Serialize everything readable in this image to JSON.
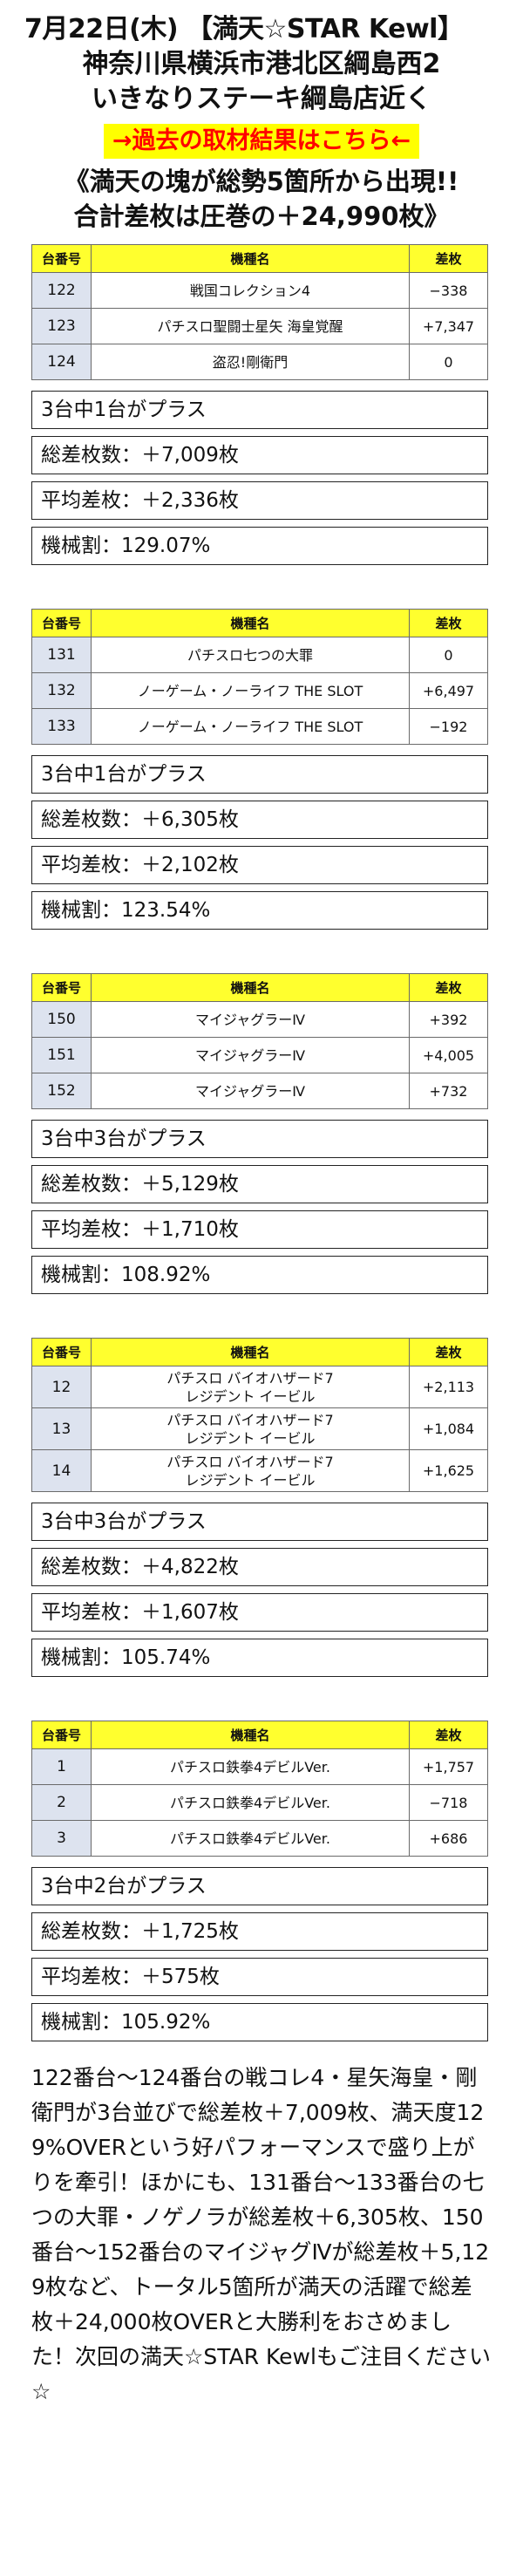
{
  "header": {
    "line1": "7月22日(木) 【満天☆STAR Kewl】",
    "line2": "神奈川県横浜市港北区綱島西2",
    "line3": "いきなりステーキ綱島店近く",
    "link_label": "→過去の取材結果はこちら←",
    "headline1": "《満天の塊が総勢5箇所から出現!!",
    "headline2": "合計差枚は圧巻の＋24,990枚》"
  },
  "columns": {
    "num": "台番号",
    "name": "機種名",
    "diff": "差枚"
  },
  "groups": [
    {
      "rows": [
        {
          "num": "122",
          "name": "戦国コレクション4",
          "diff": "−338"
        },
        {
          "num": "123",
          "name": "パチスロ聖闘士星矢 海皇覚醒",
          "diff": "+7,347"
        },
        {
          "num": "124",
          "name": "盗忍!剛衛門",
          "diff": "0"
        }
      ],
      "plus": "3台中1台がプラス",
      "total": "総差枚数：＋7,009枚",
      "avg": "平均差枚：＋2,336枚",
      "rate": "機械割：129.07%"
    },
    {
      "rows": [
        {
          "num": "131",
          "name": "パチスロ七つの大罪",
          "diff": "0"
        },
        {
          "num": "132",
          "name": "ノーゲーム・ノーライフ THE SLOT",
          "diff": "+6,497"
        },
        {
          "num": "133",
          "name": "ノーゲーム・ノーライフ THE SLOT",
          "diff": "−192"
        }
      ],
      "plus": "3台中1台がプラス",
      "total": "総差枚数：＋6,305枚",
      "avg": "平均差枚：＋2,102枚",
      "rate": "機械割：123.54%"
    },
    {
      "rows": [
        {
          "num": "150",
          "name": "マイジャグラーⅣ",
          "diff": "+392"
        },
        {
          "num": "151",
          "name": "マイジャグラーⅣ",
          "diff": "+4,005"
        },
        {
          "num": "152",
          "name": "マイジャグラーⅣ",
          "diff": "+732"
        }
      ],
      "plus": "3台中3台がプラス",
      "total": "総差枚数：＋5,129枚",
      "avg": "平均差枚：＋1,710枚",
      "rate": "機械割：108.92%"
    },
    {
      "rows": [
        {
          "num": "12",
          "name1": "パチスロ バイオハザード7",
          "name2": "レジデント イービル",
          "diff": "+2,113"
        },
        {
          "num": "13",
          "name1": "パチスロ バイオハザード7",
          "name2": "レジデント イービル",
          "diff": "+1,084"
        },
        {
          "num": "14",
          "name1": "パチスロ バイオハザード7",
          "name2": "レジデント イービル",
          "diff": "+1,625"
        }
      ],
      "plus": "3台中3台がプラス",
      "total": "総差枚数：＋4,822枚",
      "avg": "平均差枚：＋1,607枚",
      "rate": "機械割：105.74%"
    },
    {
      "rows": [
        {
          "num": "1",
          "name": "パチスロ鉄拳4デビルVer.",
          "diff": "+1,757"
        },
        {
          "num": "2",
          "name": "パチスロ鉄拳4デビルVer.",
          "diff": "−718"
        },
        {
          "num": "3",
          "name": "パチスロ鉄拳4デビルVer.",
          "diff": "+686"
        }
      ],
      "plus": "3台中2台がプラス",
      "total": "総差枚数：＋1,725枚",
      "avg": "平均差枚：＋575枚",
      "rate": "機械割：105.92%"
    }
  ],
  "summary": "122番台〜124番台の戦コレ4・星矢海皇・剛衛門が3台並びで総差枚＋7,009枚、満天度129%OVERという好パフォーマンスで盛り上がりを牽引！ほかにも、131番台〜133番台の七つの大罪・ノゲノラが総差枚＋6,305枚、150番台〜152番台のマイジャグⅣが総差枚＋5,129枚など、トータル5箇所が満天の活躍で総差枚＋24,000枚OVERと大勝利をおさめました！次回の満天☆STAR Kewlもご注目ください☆"
}
